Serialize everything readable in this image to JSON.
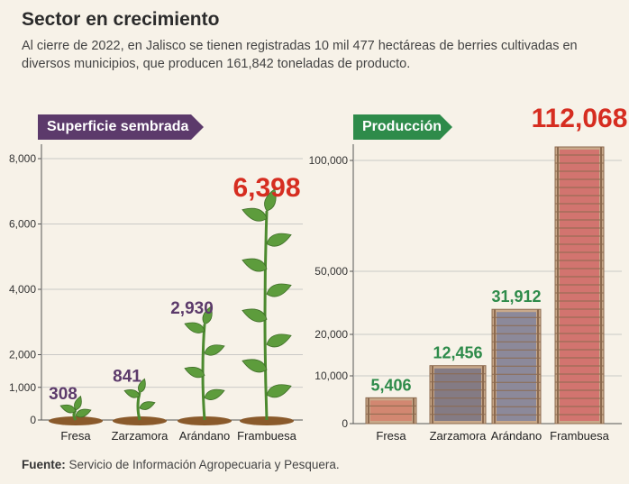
{
  "header": {
    "title": "Sector en crecimiento",
    "subtitle": "Al cierre de 2022, en Jalisco se tienen registradas 10 mil 477 hectáreas de berries cultivadas en diversos municipios, que producen 161,842 toneladas de producto."
  },
  "footer": {
    "source_label": "Fuente:",
    "source_text": "Servicio de Información Agropecuaria y Pesquera."
  },
  "colors": {
    "background": "#f7f2e8",
    "left_banner": "#5c3a6b",
    "right_banner": "#2e8b4a",
    "label_purple": "#5c3a6b",
    "label_green": "#2e8b4a",
    "highlight_red": "#d62d20",
    "leaf": "#5d9c3c",
    "crate": "#c9a98a"
  },
  "chart_data": [
    {
      "type": "bar",
      "title": "Superficie sembrada",
      "categories": [
        "Fresa",
        "Zarzamora",
        "Arándano",
        "Frambuesa"
      ],
      "values": [
        308,
        841,
        2930,
        6398
      ],
      "value_labels": [
        "308",
        "841",
        "2,930",
        "6,398"
      ],
      "yticks": [
        0,
        1000,
        2000,
        4000,
        6000,
        8000
      ],
      "ytick_labels": [
        "0",
        "1,000",
        "2,000",
        "4,000",
        "6,000",
        "8,000"
      ],
      "ylim": [
        0,
        8000
      ]
    },
    {
      "type": "bar",
      "title": "Producción",
      "categories": [
        "Fresa",
        "Zarzamora",
        "Arándano",
        "Frambuesa"
      ],
      "values": [
        5406,
        12456,
        31912,
        112068
      ],
      "value_labels": [
        "5,406",
        "12,456",
        "31,912",
        "112,068"
      ],
      "yticks": [
        0,
        10000,
        20000,
        50000,
        100000
      ],
      "ytick_labels": [
        "0",
        "10,000",
        "20,000",
        "50,000",
        "100,000"
      ],
      "ylim": [
        0,
        100000
      ]
    }
  ]
}
